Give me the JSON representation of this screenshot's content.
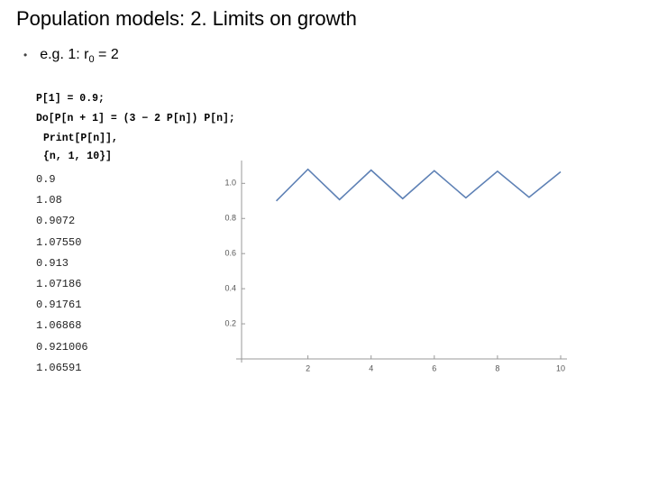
{
  "title": "Population models: 2. Limits on growth",
  "bullet": {
    "text": "e.g. 1: r",
    "subscript": "0",
    "rest": " = 2"
  },
  "code": [
    "P[1] = 0.9;",
    "Do[P[n + 1] = (3 − 2 P[n]) P[n];",
    "Print[P[n]],",
    "{n, 1, 10}]"
  ],
  "output": [
    "0.9",
    "1.08",
    "0.9072",
    "1.07550",
    "0.913",
    "1.07186",
    "0.91761",
    "1.06868",
    "0.921006",
    "1.06591"
  ],
  "chart_data": {
    "type": "line",
    "x": [
      1,
      2,
      3,
      4,
      5,
      6,
      7,
      8,
      9,
      10
    ],
    "values": [
      0.9,
      1.08,
      0.9072,
      1.0755,
      0.913,
      1.07186,
      0.91761,
      1.06868,
      0.921006,
      1.06591
    ],
    "color": "#5e81b5",
    "xlim": [
      -0.1,
      10.2
    ],
    "ylim": [
      0,
      1.13
    ],
    "xticks": [
      2,
      4,
      6,
      8,
      10
    ],
    "yticks": [
      0.2,
      0.4,
      0.6,
      0.8,
      {
        "value": 1,
        "label": "1.0"
      }
    ]
  }
}
